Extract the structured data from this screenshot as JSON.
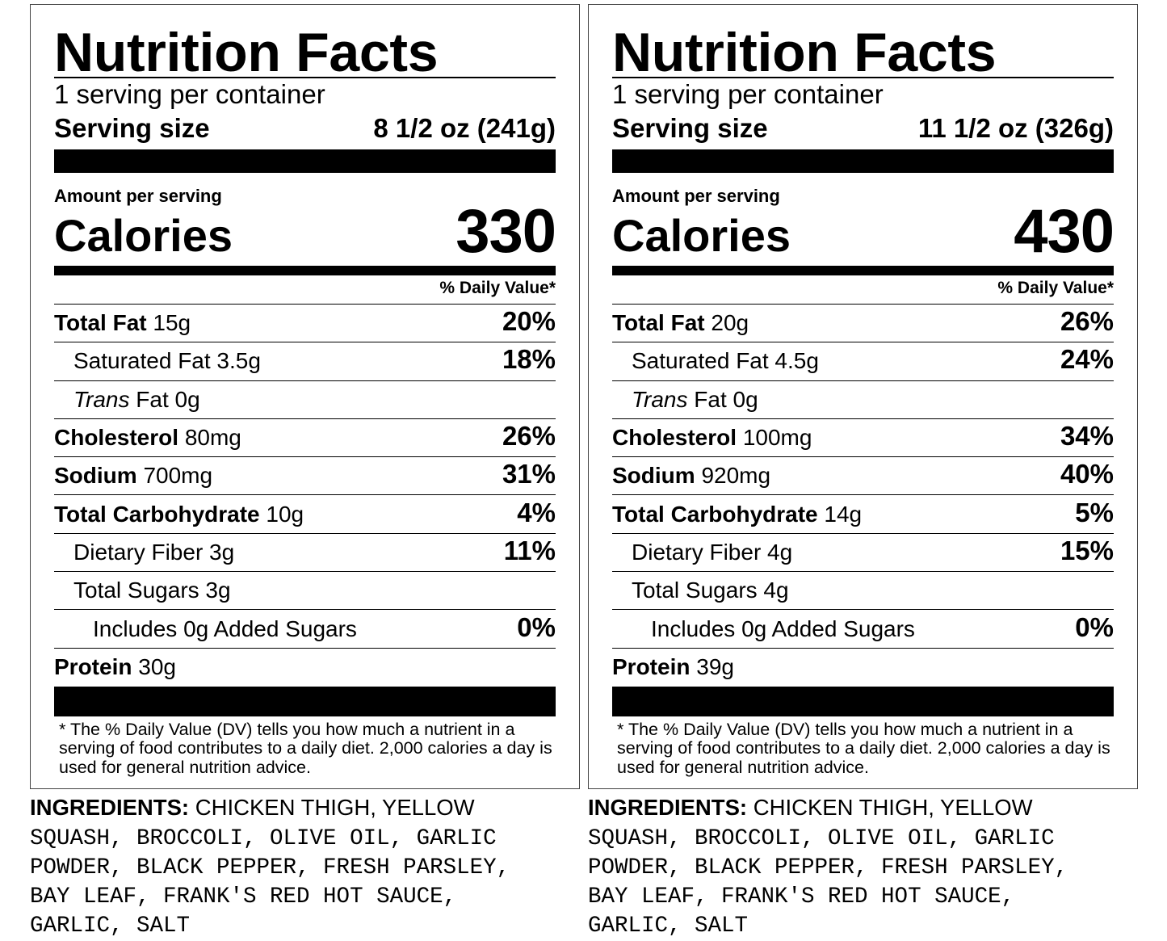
{
  "labels": [
    {
      "title": "Nutrition Facts",
      "servings_per_container": "1 serving per container",
      "serving_size_label": "Serving size",
      "serving_size_value": "8 1/2 oz (241g)",
      "amount_per_serving": "Amount per serving",
      "calories_label": "Calories",
      "calories_value": "330",
      "daily_value_header": "% Daily Value*",
      "nutrients": [
        {
          "name": "Total Fat",
          "amount": "15g",
          "dv": "20%"
        },
        {
          "name": "Saturated Fat 3.5g",
          "dv": "18%"
        },
        {
          "name_italic": "Trans",
          "name_rest": " Fat 0g"
        },
        {
          "name": "Cholesterol",
          "amount": "80mg",
          "dv": "26%"
        },
        {
          "name": "Sodium",
          "amount": "700mg",
          "dv": "31%"
        },
        {
          "name": "Total Carbohydrate",
          "amount": "10g",
          "dv": "4%"
        },
        {
          "name": "Dietary Fiber 3g",
          "dv": "11%"
        },
        {
          "name": "Total Sugars 3g"
        },
        {
          "name": "Includes 0g Added Sugars",
          "dv": "0%"
        },
        {
          "name": "Protein",
          "amount": "30g"
        }
      ],
      "footnote": "* The % Daily Value (DV) tells you how much a nutrient in a serving of food contributes to a daily diet. 2,000 calories a day is used for general nutrition advice.",
      "ingredients_label": "INGREDIENTS:",
      "ingredients_first": " CHICKEN THIGH, YELLOW",
      "ingredients_rest": "SQUASH, BROCCOLI, OLIVE OIL, GARLIC\nPOWDER, BLACK PEPPER, FRESH PARSLEY,\nBAY LEAF, FRANK'S RED HOT SAUCE,\nGARLIC, SALT"
    },
    {
      "title": "Nutrition Facts",
      "servings_per_container": "1 serving per container",
      "serving_size_label": "Serving size",
      "serving_size_value": "11 1/2 oz (326g)",
      "amount_per_serving": "Amount per serving",
      "calories_label": "Calories",
      "calories_value": "430",
      "daily_value_header": "% Daily Value*",
      "nutrients": [
        {
          "name": "Total Fat",
          "amount": "20g",
          "dv": "26%"
        },
        {
          "name": "Saturated Fat 4.5g",
          "dv": "24%"
        },
        {
          "name_italic": "Trans",
          "name_rest": " Fat 0g"
        },
        {
          "name": "Cholesterol",
          "amount": "100mg",
          "dv": "34%"
        },
        {
          "name": "Sodium",
          "amount": "920mg",
          "dv": "40%"
        },
        {
          "name": "Total Carbohydrate",
          "amount": "14g",
          "dv": "5%"
        },
        {
          "name": "Dietary Fiber 4g",
          "dv": "15%"
        },
        {
          "name": "Total Sugars 4g"
        },
        {
          "name": "Includes 0g Added Sugars",
          "dv": "0%"
        },
        {
          "name": "Protein",
          "amount": "39g"
        }
      ],
      "footnote": "* The % Daily Value (DV) tells you how much a nutrient in a serving of food contributes to a daily diet. 2,000 calories a day is used for general nutrition advice.",
      "ingredients_label": "INGREDIENTS:",
      "ingredients_first": " CHICKEN THIGH, YELLOW",
      "ingredients_rest": "SQUASH, BROCCOLI, OLIVE OIL, GARLIC\nPOWDER, BLACK PEPPER, FRESH PARSLEY,\nBAY LEAF, FRANK'S RED HOT SAUCE,\nGARLIC, SALT"
    }
  ]
}
